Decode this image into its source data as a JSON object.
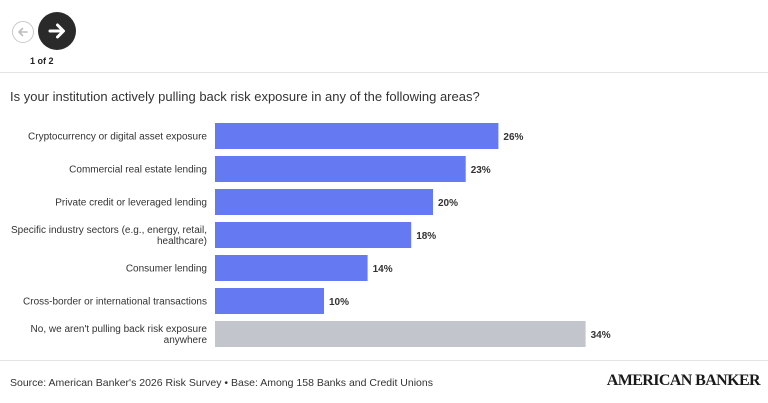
{
  "nav": {
    "pager": "1 of 2",
    "prev_icon": "arrow-left-icon",
    "next_icon": "arrow-right-icon"
  },
  "question": "Is your institution actively pulling back risk exposure in any of the following areas?",
  "chart_data": {
    "type": "bar",
    "orientation": "horizontal",
    "categories": [
      [
        "Cryptocurrency or digital asset exposure"
      ],
      [
        "Commercial real estate lending"
      ],
      [
        "Private credit or leveraged lending"
      ],
      [
        "Specific industry sectors (e.g., energy, retail,",
        "healthcare)"
      ],
      [
        "Consumer lending"
      ],
      [
        "Cross-border or international transactions"
      ],
      [
        "No, we aren't pulling back risk exposure",
        "anywhere"
      ]
    ],
    "values": [
      26,
      23,
      20,
      18,
      14,
      10,
      34
    ],
    "value_labels": [
      "26%",
      "23%",
      "20%",
      "18%",
      "14%",
      "10%",
      "34%"
    ],
    "colors": [
      "#6479f2",
      "#6479f2",
      "#6479f2",
      "#6479f2",
      "#6479f2",
      "#6479f2",
      "#c2c6cc"
    ],
    "xlim": [
      0,
      100
    ],
    "grid": false
  },
  "footer": {
    "source": "Source: American Banker's 2026 Risk Survey • Base: Among 158 Banks and Credit Unions",
    "brand": "AMERICAN BANKER"
  }
}
